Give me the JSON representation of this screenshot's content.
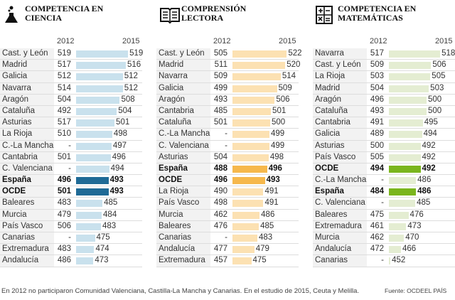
{
  "chart_data": [
    {
      "type": "bar",
      "title": "COMPETENCIA EN CIENCIA",
      "icon": "flask-icon",
      "col_2012": "2012",
      "col_2015": "2015",
      "color": "#c9e1ed",
      "highlight_color": "#1f6a96",
      "rows": [
        [
          "Cast. y León",
          "519",
          "519"
        ],
        [
          "Madrid",
          "517",
          "516"
        ],
        [
          "Galicia",
          "512",
          "512"
        ],
        [
          "Navarra",
          "514",
          "512"
        ],
        [
          "Aragón",
          "504",
          "508"
        ],
        [
          "Cataluña",
          "492",
          "504"
        ],
        [
          "Asturias",
          "517",
          "501"
        ],
        [
          "La Rioja",
          "510",
          "498"
        ],
        [
          "C.-La Mancha",
          "-",
          "497"
        ],
        [
          "Cantabria",
          "501",
          "496"
        ],
        [
          "C. Valenciana",
          "-",
          "494"
        ],
        [
          "España",
          "496",
          "493",
          true
        ],
        [
          "OCDE",
          "501",
          "493",
          true
        ],
        [
          "Baleares",
          "483",
          "485"
        ],
        [
          "Murcia",
          "479",
          "484"
        ],
        [
          "País Vasco",
          "506",
          "483"
        ],
        [
          "Canarias",
          "-",
          "475"
        ],
        [
          "Extremadura",
          "483",
          "474"
        ],
        [
          "Andalucía",
          "486",
          "473"
        ]
      ]
    },
    {
      "type": "bar",
      "title": "COMPRENSIÓN LECTORA",
      "icon": "open-book-icon",
      "col_2012": "2012",
      "col_2015": "2015",
      "color": "#fce1b2",
      "highlight_color": "#f6b84c",
      "rows": [
        [
          "Cast. y León",
          "505",
          "522"
        ],
        [
          "Madrid",
          "511",
          "520"
        ],
        [
          "Navarra",
          "509",
          "514"
        ],
        [
          "Galicia",
          "499",
          "509"
        ],
        [
          "Aragón",
          "493",
          "506"
        ],
        [
          "Cantabria",
          "485",
          "501"
        ],
        [
          "Cataluña",
          "501",
          "500"
        ],
        [
          "C.-La Mancha",
          "-",
          "499"
        ],
        [
          "C. Valenciana",
          "-",
          "499"
        ],
        [
          "Asturias",
          "504",
          "498"
        ],
        [
          "España",
          "488",
          "496",
          true
        ],
        [
          "OCDE",
          "496",
          "493",
          true
        ],
        [
          "La Rioja",
          "490",
          "491"
        ],
        [
          "País Vasco",
          "498",
          "491"
        ],
        [
          "Murcia",
          "462",
          "486"
        ],
        [
          "Baleares",
          "476",
          "485"
        ],
        [
          "Canarias",
          "-",
          "483"
        ],
        [
          "Andalucía",
          "477",
          "479"
        ],
        [
          "Extremadura",
          "457",
          "475"
        ]
      ]
    },
    {
      "type": "bar",
      "title": "COMPETENCIA EN MATEMÁTICAS",
      "icon": "calculator-icon",
      "col_2012": "2012",
      "col_2015": "2015",
      "color": "#e4edd2",
      "highlight_color": "#7ab51d",
      "rows": [
        [
          "Navarra",
          "517",
          "518"
        ],
        [
          "Cast. y León",
          "509",
          "506"
        ],
        [
          "La Rioja",
          "503",
          "505"
        ],
        [
          "Madrid",
          "504",
          "503"
        ],
        [
          "Aragón",
          "496",
          "500"
        ],
        [
          "Cataluña",
          "493",
          "500"
        ],
        [
          "Cantabria",
          "491",
          "495"
        ],
        [
          "Galicia",
          "489",
          "494"
        ],
        [
          "Asturias",
          "500",
          "492"
        ],
        [
          "País Vasco",
          "505",
          "492"
        ],
        [
          "OCDE",
          "494",
          "492",
          true
        ],
        [
          "C.-La Mancha",
          "-",
          "486"
        ],
        [
          "España",
          "484",
          "486",
          true
        ],
        [
          "C. Valenciana",
          "-",
          "485"
        ],
        [
          "Baleares",
          "475",
          "476"
        ],
        [
          "Extremadura",
          "461",
          "473"
        ],
        [
          "Murcia",
          "462",
          "470"
        ],
        [
          "Andalucía",
          "472",
          "466"
        ],
        [
          "Canarias",
          "-",
          "452"
        ]
      ]
    }
  ],
  "footer": {
    "note": "En 2012 no participaron Comunidad Valenciana, Castilla-La Mancha y Canarias. En el estudio de 2015, Ceuta y Melilla.",
    "source": "Fuente: OCDE.",
    "brand": "EL PAÍS"
  }
}
